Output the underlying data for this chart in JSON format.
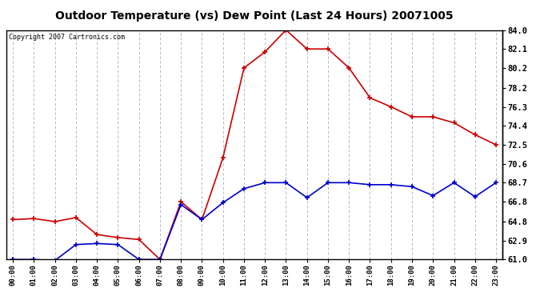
{
  "title": "Outdoor Temperature (vs) Dew Point (Last 24 Hours) 20071005",
  "copyright_text": "Copyright 2007 Cartronics.com",
  "hours": [
    "00:00",
    "01:00",
    "02:00",
    "03:00",
    "04:00",
    "05:00",
    "06:00",
    "07:00",
    "08:00",
    "09:00",
    "10:00",
    "11:00",
    "12:00",
    "13:00",
    "14:00",
    "15:00",
    "16:00",
    "17:00",
    "18:00",
    "19:00",
    "20:00",
    "21:00",
    "22:00",
    "23:00"
  ],
  "temp": [
    65.0,
    65.1,
    64.8,
    65.2,
    63.5,
    63.2,
    63.0,
    61.0,
    66.8,
    65.0,
    71.2,
    80.2,
    81.8,
    84.0,
    82.1,
    82.1,
    80.2,
    77.2,
    76.3,
    75.3,
    75.3,
    74.7,
    73.5,
    72.5
  ],
  "dew": [
    61.0,
    61.0,
    60.9,
    62.5,
    62.6,
    62.5,
    61.0,
    61.0,
    66.5,
    65.0,
    66.7,
    68.1,
    68.7,
    68.7,
    67.2,
    68.7,
    68.7,
    68.5,
    68.5,
    68.3,
    67.4,
    68.7,
    67.3,
    68.7
  ],
  "temp_color": "#cc0000",
  "dew_color": "#0000cc",
  "bg_color": "#ffffff",
  "grid_color": "#aaaacc",
  "ylim_min": 61.0,
  "ylim_max": 84.0,
  "yticks": [
    84.0,
    82.1,
    80.2,
    78.2,
    76.3,
    74.4,
    72.5,
    70.6,
    68.7,
    66.8,
    64.8,
    62.9,
    61.0
  ]
}
